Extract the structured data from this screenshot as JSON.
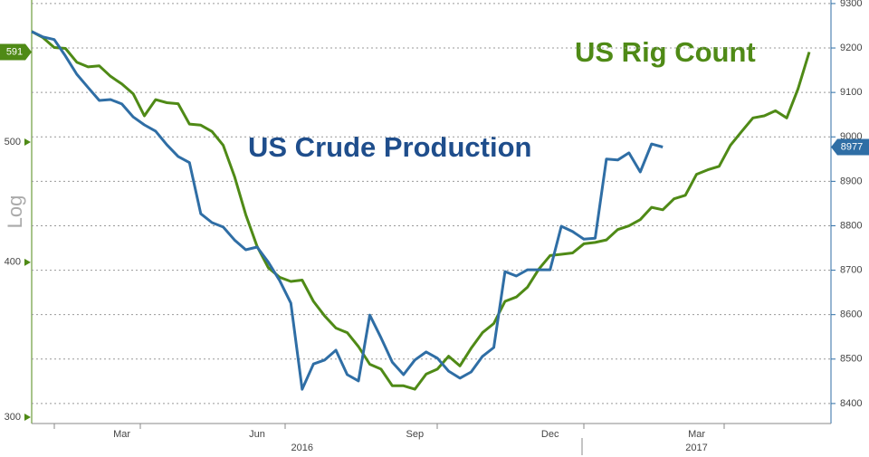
{
  "chart_data": {
    "type": "line",
    "log_scale": true,
    "y_label": "Log",
    "categories": [
      null,
      null,
      null,
      null,
      null,
      null,
      null,
      null,
      "Mar",
      null,
      null,
      null,
      null,
      null,
      null,
      null,
      null,
      null,
      null,
      null,
      "Jun",
      null,
      null,
      null,
      null,
      null,
      null,
      null,
      null,
      null,
      null,
      null,
      null,
      null,
      "Sep",
      null,
      null,
      null,
      null,
      null,
      null,
      null,
      null,
      null,
      null,
      null,
      "Dec",
      null,
      null,
      null,
      null,
      null,
      null,
      null,
      null,
      null,
      null,
      null,
      null,
      "Mar",
      null,
      null,
      null,
      null,
      null,
      null,
      null,
      null,
      null,
      null
    ],
    "year_groups": [
      {
        "label": "2016",
        "from": 0,
        "to": 48
      },
      {
        "label": "2017",
        "from": 49,
        "to": 69
      }
    ],
    "ylim": [
      296.5,
      651
    ],
    "yticks": [
      300,
      400,
      500
    ],
    "y2lim": [
      8355,
      9308
    ],
    "y2ticks": [
      8400,
      8500,
      8600,
      8700,
      8800,
      8900,
      9000,
      9100,
      9200,
      9300
    ],
    "grid": true,
    "series": [
      {
        "name": "US Rig Count",
        "color": "#4f8a16",
        "values": [
          614,
          607,
          596,
          595,
          580,
          575,
          576,
          565,
          557,
          547,
          525,
          541,
          538,
          537,
          517,
          516,
          510,
          497,
          469,
          437,
          412,
          396,
          389,
          386,
          387,
          372,
          362,
          354,
          351,
          342,
          331,
          328,
          318,
          318,
          316,
          325,
          328,
          336,
          330,
          341,
          351,
          357,
          372,
          375,
          382,
          395,
          405,
          406,
          407,
          414,
          415,
          417,
          425,
          428,
          433,
          443,
          441,
          450,
          453,
          471,
          475,
          478,
          497,
          510,
          523,
          525,
          530,
          523,
          552,
          591
        ]
      },
      {
        "name": "US Crude Production",
        "color": "#2f6ea5",
        "axis": "y2",
        "values": [
          9237,
          9225,
          9219,
          9182,
          9141,
          9111,
          9082,
          9084,
          9074,
          9045,
          9027,
          9013,
          8982,
          8956,
          8942,
          8827,
          8807,
          8797,
          8768,
          8746,
          8752,
          8718,
          8677,
          8626,
          8432,
          8489,
          8498,
          8520,
          8465,
          8451,
          8599,
          8548,
          8493,
          8465,
          8498,
          8516,
          8502,
          8473,
          8457,
          8471,
          8506,
          8526,
          8697,
          8687,
          8701,
          8701,
          8701,
          8799,
          8787,
          8770,
          8772,
          8950,
          8948,
          8964,
          8921,
          8984,
          8977,
          null,
          null,
          null,
          null,
          null,
          null,
          null,
          null,
          null,
          null,
          null,
          null,
          null
        ]
      }
    ]
  }
}
